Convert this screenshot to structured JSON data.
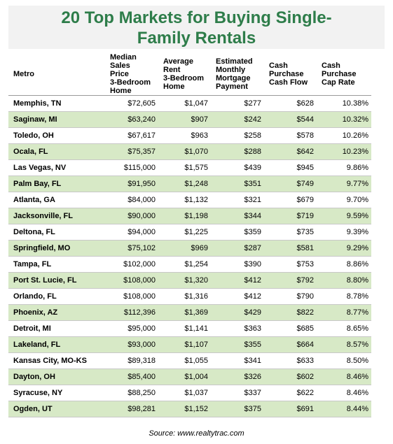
{
  "title": "20 Top Markets for Buying Single-Family Rentals",
  "table": {
    "header": [
      [
        "Metro"
      ],
      [
        "Median Sales",
        "Price",
        "3-Bedroom",
        "Home"
      ],
      [
        "Average",
        "Rent",
        "3-Bedroom",
        "Home"
      ],
      [
        "Estimated",
        "Monthly",
        "Mortgage",
        "Payment"
      ],
      [
        "Cash",
        "Purchase",
        "Cash Flow"
      ],
      [
        "Cash",
        "Purchase",
        "Cap Rate"
      ]
    ],
    "rows": [
      [
        "Memphis, TN",
        "$72,605",
        "$1,047",
        "$277",
        "$628",
        "10.38%"
      ],
      [
        "Saginaw, MI",
        "$63,240",
        "$907",
        "$242",
        "$544",
        "10.32%"
      ],
      [
        "Toledo, OH",
        "$67,617",
        "$963",
        "$258",
        "$578",
        "10.26%"
      ],
      [
        "Ocala, FL",
        "$75,357",
        "$1,070",
        "$288",
        "$642",
        "10.23%"
      ],
      [
        "Las Vegas, NV",
        "$115,000",
        "$1,575",
        "$439",
        "$945",
        "9.86%"
      ],
      [
        "Palm Bay, FL",
        "$91,950",
        "$1,248",
        "$351",
        "$749",
        "9.77%"
      ],
      [
        "Atlanta, GA",
        "$84,000",
        "$1,132",
        "$321",
        "$679",
        "9.70%"
      ],
      [
        "Jacksonville, FL",
        "$90,000",
        "$1,198",
        "$344",
        "$719",
        "9.59%"
      ],
      [
        "Deltona, FL",
        "$94,000",
        "$1,225",
        "$359",
        "$735",
        "9.39%"
      ],
      [
        "Springfield, MO",
        "$75,102",
        "$969",
        "$287",
        "$581",
        "9.29%"
      ],
      [
        "Tampa, FL",
        "$102,000",
        "$1,254",
        "$390",
        "$753",
        "8.86%"
      ],
      [
        "Port St. Lucie, FL",
        "$108,000",
        "$1,320",
        "$412",
        "$792",
        "8.80%"
      ],
      [
        "Orlando, FL",
        "$108,000",
        "$1,316",
        "$412",
        "$790",
        "8.78%"
      ],
      [
        "Phoenix, AZ",
        "$112,396",
        "$1,369",
        "$429",
        "$822",
        "8.77%"
      ],
      [
        "Detroit, MI",
        "$95,000",
        "$1,141",
        "$363",
        "$685",
        "8.65%"
      ],
      [
        "Lakeland, FL",
        "$93,000",
        "$1,107",
        "$355",
        "$664",
        "8.57%"
      ],
      [
        "Kansas City, MO-KS",
        "$89,318",
        "$1,055",
        "$341",
        "$633",
        "8.50%"
      ],
      [
        "Dayton, OH",
        "$85,400",
        "$1,004",
        "$326",
        "$602",
        "8.46%"
      ],
      [
        "Syracuse, NY",
        "$88,250",
        "$1,037",
        "$337",
        "$622",
        "8.46%"
      ],
      [
        "Ogden, UT",
        "$98,281",
        "$1,152",
        "$375",
        "$691",
        "8.44%"
      ]
    ]
  },
  "source": "Source: www.realtytrac.com"
}
